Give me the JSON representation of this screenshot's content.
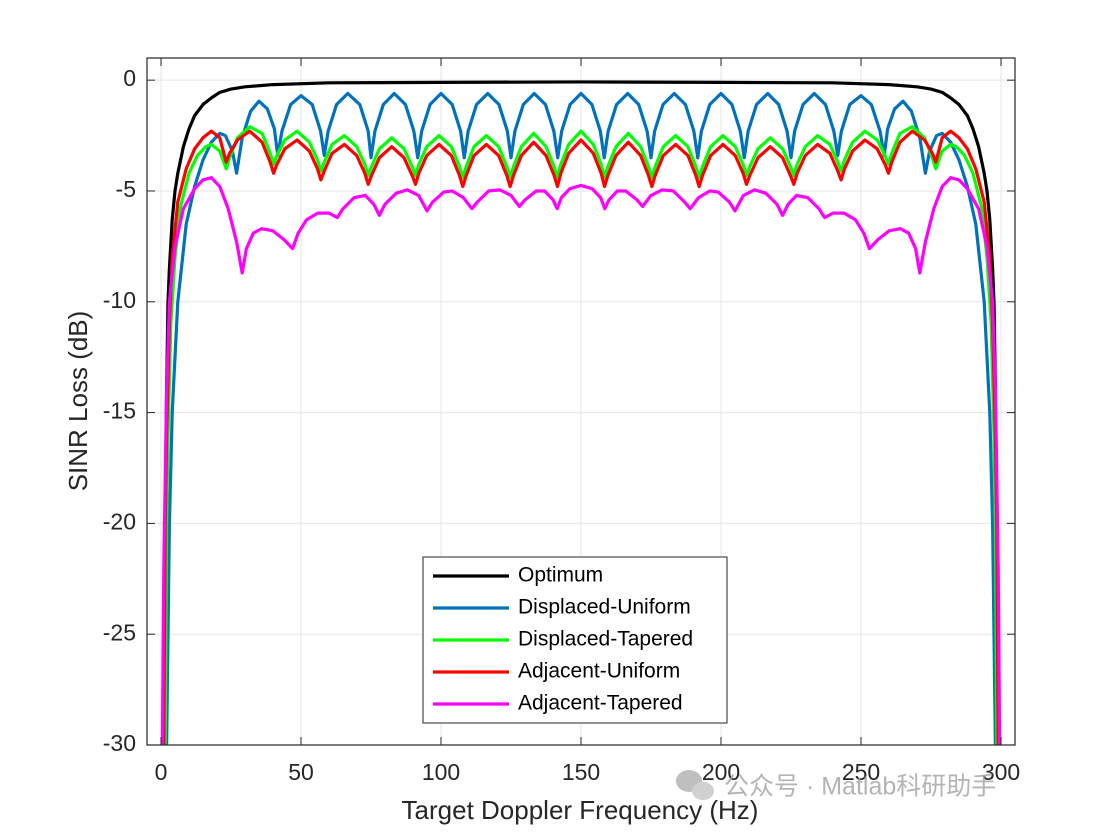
{
  "chart_data": {
    "type": "line",
    "xlabel": "Target Doppler Frequency (Hz)",
    "ylabel": "SINR Loss (dB)",
    "xlim": [
      -5,
      305
    ],
    "ylim": [
      -30,
      1
    ],
    "xticks": [
      0,
      50,
      100,
      150,
      200,
      250,
      300
    ],
    "yticks": [
      -30,
      -25,
      -20,
      -15,
      -10,
      -5,
      0
    ],
    "grid": true,
    "legend": "south",
    "watermark": "公众号 · Matlab科研助手",
    "series": [
      {
        "name": "Optimum",
        "color": "#000000",
        "x": [
          1,
          1.5,
          2,
          2.5,
          3,
          4,
          5,
          6,
          8,
          10,
          12,
          15,
          18,
          21,
          25,
          30,
          40,
          60,
          100,
          150,
          200,
          240,
          260,
          270,
          275,
          279,
          282,
          285,
          288,
          290,
          292,
          294,
          295,
          296,
          297,
          297.5,
          298,
          298.5,
          299
        ],
        "values": [
          -30,
          -20,
          -14,
          -10,
          -8.5,
          -6.3,
          -5,
          -4.2,
          -3,
          -2.2,
          -1.6,
          -1.1,
          -0.8,
          -0.55,
          -0.4,
          -0.3,
          -0.2,
          -0.12,
          -0.1,
          -0.08,
          -0.1,
          -0.12,
          -0.2,
          -0.3,
          -0.4,
          -0.55,
          -0.8,
          -1.1,
          -1.6,
          -2.2,
          -3,
          -4.2,
          -5,
          -6.3,
          -8.5,
          -10,
          -14,
          -20,
          -30
        ]
      },
      {
        "name": "Displaced-Uniform",
        "color": "#0072BD",
        "x": [
          2,
          3,
          4,
          6,
          9,
          12,
          15,
          18,
          21,
          23,
          25.5,
          27,
          29,
          32,
          35,
          38,
          40.5,
          41.7,
          43.2,
          46.3,
          50,
          54,
          57,
          58.3,
          59.7,
          62.7,
          66.7,
          71,
          74,
          75,
          76.4,
          79.4,
          83.3,
          87.3,
          90.3,
          91.7,
          93.1,
          96.1,
          100,
          104,
          107,
          108.3,
          109.7,
          112.7,
          116.7,
          120.7,
          123.7,
          125,
          126.4,
          129.4,
          133.3,
          137.3,
          140.3,
          141.7,
          143.1,
          146.1,
          150,
          153.9,
          156.9,
          158.3,
          159.7,
          162.7,
          166.7,
          170.6,
          173.6,
          175,
          176.3,
          179.3,
          183.3,
          187.3,
          190.3,
          191.7,
          193,
          196,
          200,
          203.9,
          206.9,
          208.3,
          209.7,
          212.7,
          216.7,
          220.6,
          223.6,
          225,
          226.3,
          229.3,
          233.3,
          237.3,
          240.3,
          241.7,
          243,
          246,
          250,
          253.7,
          256.8,
          258.3,
          259.5,
          262,
          265,
          268,
          271,
          273,
          274.5,
          277,
          279,
          282,
          285,
          288,
          291,
          294,
          296,
          297,
          298
        ],
        "values": [
          -30,
          -20,
          -15,
          -10,
          -6.5,
          -4.8,
          -3.6,
          -2.8,
          -2.4,
          -2.5,
          -3.2,
          -4.2,
          -2.6,
          -1.4,
          -0.95,
          -1.3,
          -2.2,
          -3.4,
          -2.3,
          -1.1,
          -0.7,
          -1.1,
          -2.3,
          -3.4,
          -2.3,
          -1.1,
          -0.6,
          -1.1,
          -2.3,
          -3.5,
          -2.3,
          -1.1,
          -0.6,
          -1.1,
          -2.3,
          -3.5,
          -2.3,
          -1.1,
          -0.6,
          -1.1,
          -2.3,
          -3.5,
          -2.3,
          -1.1,
          -0.6,
          -1.1,
          -2.3,
          -3.5,
          -2.3,
          -1.1,
          -0.6,
          -1.1,
          -2.3,
          -3.5,
          -2.3,
          -1.1,
          -0.6,
          -1.1,
          -2.3,
          -3.5,
          -2.3,
          -1.1,
          -0.6,
          -1.1,
          -2.3,
          -3.5,
          -2.3,
          -1.1,
          -0.6,
          -1.1,
          -2.3,
          -3.5,
          -2.3,
          -1.1,
          -0.6,
          -1.1,
          -2.3,
          -3.5,
          -2.3,
          -1.1,
          -0.6,
          -1.1,
          -2.3,
          -3.5,
          -2.3,
          -1.1,
          -0.6,
          -1.1,
          -2.3,
          -3.4,
          -2.3,
          -1.1,
          -0.7,
          -1.1,
          -2.3,
          -3.4,
          -2.2,
          -1.3,
          -0.95,
          -1.4,
          -2.6,
          -4.2,
          -3.2,
          -2.5,
          -2.4,
          -2.8,
          -3.6,
          -4.8,
          -6.5,
          -10,
          -15,
          -20,
          -30
        ]
      },
      {
        "name": "Displaced-Tapered",
        "color": "#00FF00",
        "x": [
          1.5,
          2,
          2.5,
          3.5,
          5,
          7,
          10,
          13,
          16,
          18,
          21,
          23.3,
          24.5,
          27.3,
          31.7,
          36.1,
          39,
          40.2,
          41.4,
          44.2,
          48.6,
          53,
          55.9,
          57.1,
          58.3,
          61.1,
          65.5,
          69.9,
          72.8,
          74,
          75.2,
          78,
          82.4,
          86.8,
          89.7,
          90.9,
          92.1,
          94.9,
          99.3,
          103.7,
          106.6,
          107.8,
          109,
          111.8,
          116.2,
          120.6,
          123.5,
          124.7,
          125.9,
          128.7,
          133.1,
          137.5,
          140.4,
          141.6,
          142.8,
          145.6,
          150,
          154.4,
          157.2,
          158.4,
          159.6,
          162.5,
          166.9,
          171.3,
          174.1,
          175.3,
          176.5,
          179.4,
          183.8,
          188.2,
          191,
          192.2,
          193.4,
          196.3,
          200.7,
          205.1,
          207.9,
          209.1,
          210.3,
          213.2,
          217.6,
          222,
          224.8,
          226,
          227.2,
          230.1,
          234.5,
          238.9,
          241.7,
          242.9,
          244.1,
          247,
          251.4,
          255.8,
          258.6,
          259.8,
          261,
          263.9,
          268.3,
          272.7,
          275.5,
          276.7,
          279,
          282,
          284,
          287,
          290,
          293,
          295,
          296.5,
          297.5,
          298,
          298.5
        ],
        "values": [
          -30,
          -20,
          -16,
          -11,
          -8,
          -5.7,
          -4.2,
          -3.4,
          -3.0,
          -2.9,
          -3.2,
          -4.0,
          -3.5,
          -2.6,
          -2.1,
          -2.4,
          -3.3,
          -3.8,
          -3.4,
          -2.7,
          -2.3,
          -2.8,
          -3.6,
          -4.1,
          -3.7,
          -2.9,
          -2.5,
          -3.0,
          -3.8,
          -4.3,
          -3.9,
          -3.1,
          -2.6,
          -3.1,
          -3.9,
          -4.3,
          -3.8,
          -3.0,
          -2.5,
          -3.0,
          -3.9,
          -4.4,
          -3.9,
          -3.0,
          -2.5,
          -3.0,
          -3.9,
          -4.4,
          -3.9,
          -3.0,
          -2.4,
          -3.0,
          -3.9,
          -4.4,
          -3.8,
          -2.9,
          -2.3,
          -2.9,
          -3.8,
          -4.4,
          -3.9,
          -3.0,
          -2.4,
          -3.0,
          -3.9,
          -4.4,
          -3.9,
          -3.0,
          -2.5,
          -3.0,
          -3.9,
          -4.4,
          -3.9,
          -3.0,
          -2.5,
          -3.0,
          -3.8,
          -4.3,
          -3.9,
          -3.1,
          -2.6,
          -3.1,
          -3.9,
          -4.3,
          -3.8,
          -3.0,
          -2.5,
          -2.9,
          -3.7,
          -4.1,
          -3.6,
          -2.8,
          -2.3,
          -2.7,
          -3.4,
          -3.8,
          -3.3,
          -2.4,
          -2.1,
          -2.6,
          -3.5,
          -4.0,
          -3.2,
          -2.9,
          -3.0,
          -3.4,
          -4.2,
          -5.7,
          -8,
          -11,
          -16,
          -20,
          -30
        ]
      },
      {
        "name": "Adjacent-Uniform",
        "color": "#FF0000",
        "x": [
          1,
          1.5,
          2,
          3,
          4,
          6,
          9,
          12,
          15,
          18,
          21,
          23.3,
          24.5,
          27.3,
          31.7,
          36.1,
          39,
          40.2,
          41.4,
          44.2,
          48.6,
          53,
          55.9,
          57.1,
          58.3,
          61.1,
          65.5,
          69.9,
          72.8,
          74,
          75.2,
          78,
          82.4,
          86.8,
          89.7,
          90.9,
          92.1,
          94.9,
          99.3,
          103.7,
          106.6,
          107.8,
          109,
          111.8,
          116.2,
          120.6,
          123.5,
          124.7,
          125.9,
          128.7,
          133.1,
          137.5,
          140.4,
          141.6,
          142.8,
          145.6,
          150,
          154.4,
          157.2,
          158.4,
          159.6,
          162.5,
          166.9,
          171.3,
          174.1,
          175.3,
          176.5,
          179.4,
          183.8,
          188.2,
          191,
          192.2,
          193.4,
          196.3,
          200.7,
          205.1,
          207.9,
          209.1,
          210.3,
          213.2,
          217.6,
          222,
          224.8,
          226,
          227.2,
          230.1,
          234.5,
          238.9,
          241.7,
          242.9,
          244.1,
          247,
          251.4,
          255.8,
          258.6,
          259.8,
          261,
          263.9,
          268.3,
          272.7,
          275.5,
          276.7,
          279,
          282,
          285,
          288,
          291,
          294,
          296,
          297,
          298,
          298.5,
          299
        ],
        "values": [
          -30,
          -20,
          -16,
          -11,
          -8,
          -5.5,
          -4,
          -3.1,
          -2.6,
          -2.3,
          -2.6,
          -3.7,
          -3.3,
          -2.7,
          -2.3,
          -2.8,
          -3.7,
          -4.2,
          -3.8,
          -3.1,
          -2.7,
          -3.2,
          -4.0,
          -4.5,
          -4.1,
          -3.3,
          -2.9,
          -3.4,
          -4.2,
          -4.7,
          -4.3,
          -3.5,
          -3.0,
          -3.5,
          -4.3,
          -4.7,
          -4.2,
          -3.4,
          -2.9,
          -3.4,
          -4.3,
          -4.8,
          -4.3,
          -3.4,
          -2.9,
          -3.4,
          -4.3,
          -4.8,
          -4.3,
          -3.4,
          -2.8,
          -3.4,
          -4.3,
          -4.8,
          -4.2,
          -3.3,
          -2.7,
          -3.3,
          -4.2,
          -4.8,
          -4.3,
          -3.4,
          -2.8,
          -3.4,
          -4.3,
          -4.8,
          -4.3,
          -3.4,
          -2.9,
          -3.4,
          -4.3,
          -4.8,
          -4.3,
          -3.4,
          -2.9,
          -3.4,
          -4.2,
          -4.7,
          -4.3,
          -3.5,
          -3.0,
          -3.5,
          -4.3,
          -4.7,
          -4.2,
          -3.4,
          -2.9,
          -3.3,
          -4.1,
          -4.5,
          -4.0,
          -3.2,
          -2.7,
          -3.1,
          -3.8,
          -4.2,
          -3.7,
          -2.8,
          -2.3,
          -2.7,
          -3.3,
          -3.7,
          -2.6,
          -2.3,
          -2.6,
          -3.1,
          -4,
          -5.5,
          -8,
          -11,
          -16,
          -20,
          -30
        ]
      },
      {
        "name": "Adjacent-Tapered",
        "color": "#FF00FF",
        "x": [
          0.5,
          1,
          2,
          3,
          5,
          8,
          12,
          15,
          18,
          21,
          24,
          27,
          29,
          30.5,
          33,
          36,
          40,
          44,
          47,
          49,
          52,
          56,
          60,
          63,
          65,
          69,
          73,
          76,
          78,
          80,
          84,
          88,
          92,
          95,
          97,
          101,
          104,
          108,
          111,
          113,
          117,
          121,
          125,
          128,
          130,
          134,
          137,
          140,
          141.5,
          143,
          146,
          150,
          154,
          157,
          158.5,
          160,
          163,
          166,
          170,
          172,
          175,
          179,
          183,
          187,
          189,
          192,
          196,
          199,
          203,
          205,
          208,
          212,
          216,
          220,
          222,
          224,
          227,
          231,
          235,
          237,
          240,
          244,
          248,
          251,
          253,
          256,
          260,
          264,
          267,
          269.5,
          271,
          273,
          276,
          279,
          282,
          285,
          288,
          292,
          295,
          297,
          298,
          299,
          299.5
        ],
        "values": [
          -30,
          -22,
          -14,
          -10,
          -7.5,
          -5.8,
          -4.9,
          -4.5,
          -4.4,
          -4.8,
          -5.8,
          -7.3,
          -8.7,
          -7.6,
          -6.9,
          -6.7,
          -6.8,
          -7.2,
          -7.6,
          -6.9,
          -6.3,
          -6.0,
          -6.0,
          -6.2,
          -5.8,
          -5.3,
          -5.2,
          -5.6,
          -6.1,
          -5.6,
          -5.1,
          -4.95,
          -5.2,
          -5.9,
          -5.5,
          -5.05,
          -5.0,
          -5.3,
          -5.8,
          -5.5,
          -5.0,
          -4.95,
          -5.2,
          -5.7,
          -5.4,
          -5.0,
          -5.0,
          -5.4,
          -5.8,
          -5.3,
          -4.9,
          -4.75,
          -4.9,
          -5.3,
          -5.8,
          -5.4,
          -5.0,
          -5.0,
          -5.4,
          -5.7,
          -5.2,
          -4.95,
          -5.0,
          -5.5,
          -5.8,
          -5.3,
          -5.0,
          -5.05,
          -5.5,
          -5.9,
          -5.2,
          -4.95,
          -5.1,
          -5.6,
          -6.1,
          -5.6,
          -5.2,
          -5.3,
          -5.8,
          -6.2,
          -6.0,
          -6.0,
          -6.3,
          -6.9,
          -7.6,
          -7.2,
          -6.8,
          -6.7,
          -6.9,
          -7.6,
          -8.7,
          -7.3,
          -5.8,
          -4.8,
          -4.4,
          -4.5,
          -4.9,
          -5.8,
          -7.5,
          -10,
          -14,
          -22,
          -30
        ]
      }
    ]
  }
}
